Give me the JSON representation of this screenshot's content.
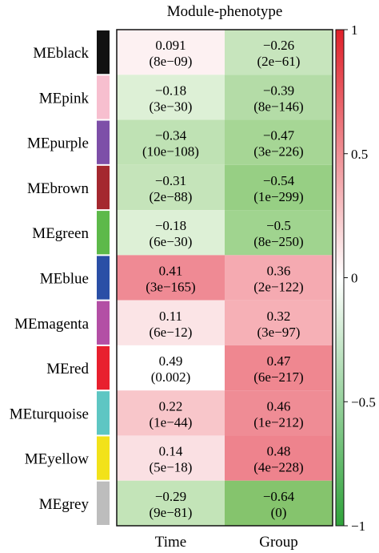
{
  "chart_data": {
    "type": "heatmap",
    "title": "Module-phenotype",
    "columns": [
      "Time",
      "Group"
    ],
    "rows": [
      {
        "label": "MEblack",
        "module_color": "#111111",
        "values": [
          0.091,
          -0.26
        ],
        "labels": [
          [
            "0.091",
            "(8e−09)"
          ],
          [
            "−0.26",
            "(2e−61)"
          ]
        ]
      },
      {
        "label": "MEpink",
        "module_color": "#f7bfcf",
        "values": [
          -0.18,
          -0.39
        ],
        "labels": [
          [
            "−0.18",
            "(3e−30)"
          ],
          [
            "−0.39",
            "(8e−146)"
          ]
        ]
      },
      {
        "label": "MEpurple",
        "module_color": "#7d4fa8",
        "values": [
          -0.34,
          -0.47
        ],
        "labels": [
          [
            "−0.34",
            "(10e−108)"
          ],
          [
            "−0.47",
            "(3e−226)"
          ]
        ]
      },
      {
        "label": "MEbrown",
        "module_color": "#a4282f",
        "values": [
          -0.31,
          -0.54
        ],
        "labels": [
          [
            "−0.31",
            "(2e−88)"
          ],
          [
            "−0.54",
            "(1e−299)"
          ]
        ]
      },
      {
        "label": "MEgreen",
        "module_color": "#5db94a",
        "values": [
          -0.18,
          -0.5
        ],
        "labels": [
          [
            "−0.18",
            "(6e−30)"
          ],
          [
            "−0.5",
            "(8e−250)"
          ]
        ]
      },
      {
        "label": "MEblue",
        "module_color": "#2a4fa6",
        "values": [
          0.41,
          0.36
        ],
        "labels": [
          [
            "0.41",
            "(3e−165)"
          ],
          [
            "0.36",
            "(2e−122)"
          ]
        ]
      },
      {
        "label": "MEmagenta",
        "module_color": "#b34fa5",
        "values": [
          0.11,
          0.32
        ],
        "labels": [
          [
            "0.11",
            "(6e−12)"
          ],
          [
            "0.32",
            "(3e−97)"
          ]
        ]
      },
      {
        "label": "MEred",
        "module_color": "#e8202e",
        "values": [
          0.49,
          0.47
        ],
        "labels": [
          [
            "0.49",
            "(0.002)"
          ],
          [
            "0.47",
            "(6e−217)"
          ]
        ]
      },
      {
        "label": "MEturquoise",
        "module_color": "#5ec6c3",
        "values": [
          0.22,
          0.46
        ],
        "labels": [
          [
            "0.22",
            "(1e−44)"
          ],
          [
            "0.46",
            "(1e−212)"
          ]
        ]
      },
      {
        "label": "MEyellow",
        "module_color": "#f2e21a",
        "values": [
          0.14,
          0.48
        ],
        "labels": [
          [
            "0.14",
            "(5e−18)"
          ],
          [
            "0.48",
            "(4e−228)"
          ]
        ]
      },
      {
        "label": "MEgrey",
        "module_color": "#bdbdbd",
        "values": [
          -0.29,
          -0.64
        ],
        "labels": [
          [
            "−0.29",
            "(9e−81)"
          ],
          [
            "−0.64",
            "(0)"
          ]
        ]
      }
    ],
    "cell_colors": [
      [
        "#fdf1f2",
        "#c7e5bd"
      ],
      [
        "#ddf0d6",
        "#b4dca7"
      ],
      [
        "#bfe2b4",
        "#a6d695"
      ],
      [
        "#c5e4ba",
        "#97cf84"
      ],
      [
        "#ddf0d6",
        "#a0d48f"
      ],
      [
        "#ef8a94",
        "#f5aab1"
      ],
      [
        "#fbe4e6",
        "#f6b0b6"
      ],
      [
        "#ffffff",
        "#ef8790"
      ],
      [
        "#f8c6ca",
        "#ef8c95"
      ],
      [
        "#fae0e3",
        "#ee838d"
      ],
      [
        "#c3e4b8",
        "#85c46d"
      ]
    ],
    "colorbar": {
      "range": [
        -1,
        1
      ],
      "ticks": [
        1,
        0.5,
        0,
        -0.5,
        -1
      ],
      "tick_labels": [
        "1",
        "0.5",
        "0",
        "−0.5",
        "−1"
      ],
      "colors": {
        "top": "#e0202a",
        "middle": "#ffffff",
        "bottom": "#2fa33a"
      }
    }
  }
}
